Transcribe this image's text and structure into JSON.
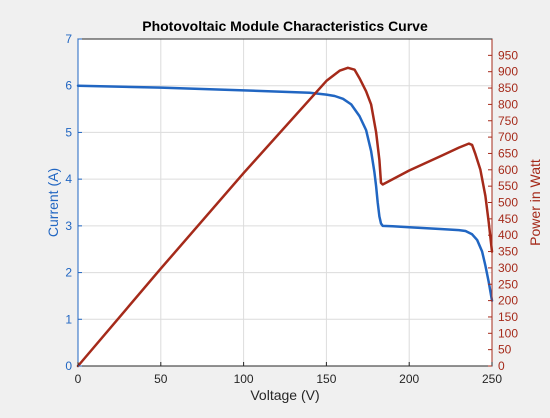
{
  "chart_data": {
    "type": "line",
    "title": "Photovoltaic Module Characteristics Curve",
    "xlabel": "Voltage (V)",
    "ylabel_left": "Current  (A)",
    "ylabel_right": "Power in Watt",
    "xlim": [
      0,
      250
    ],
    "ylim_left": [
      0,
      7
    ],
    "ylim_right": [
      0,
      1000
    ],
    "x_ticks": [
      0,
      50,
      100,
      150,
      200,
      250
    ],
    "y_left_ticks": [
      0,
      1,
      2,
      3,
      4,
      5,
      6,
      7
    ],
    "y_right_ticks": [
      0,
      50,
      100,
      150,
      200,
      250,
      300,
      350,
      400,
      450,
      500,
      550,
      600,
      650,
      700,
      750,
      800,
      850,
      900,
      950
    ],
    "grid": true,
    "colors": {
      "current": "#2166c2",
      "power": "#a52a1a",
      "left_axis": "#2166c2",
      "right_axis": "#a52a1a"
    },
    "series": [
      {
        "axis": "left",
        "x": [
          0,
          50,
          100,
          140,
          150,
          155,
          160,
          165,
          170,
          174,
          177,
          179,
          180,
          181,
          182,
          183,
          184,
          190,
          200,
          220,
          230,
          234,
          238,
          241,
          244,
          246,
          248,
          250
        ],
        "values": [
          6.0,
          5.96,
          5.9,
          5.85,
          5.81,
          5.78,
          5.72,
          5.6,
          5.35,
          5.05,
          4.6,
          4.15,
          3.85,
          3.5,
          3.2,
          3.05,
          3.0,
          2.99,
          2.97,
          2.93,
          2.91,
          2.89,
          2.82,
          2.7,
          2.45,
          2.15,
          1.8,
          1.4
        ]
      },
      {
        "axis": "right",
        "x": [
          0,
          50,
          100,
          150,
          158,
          163,
          167,
          170,
          174,
          177,
          180,
          182,
          183,
          184,
          200,
          220,
          230,
          236,
          238,
          240,
          243,
          246,
          248,
          250
        ],
        "values": [
          0,
          298,
          590,
          872,
          903,
          912,
          906,
          880,
          840,
          800,
          715,
          630,
          560,
          555,
          598,
          644,
          668,
          680,
          676,
          648,
          600,
          520,
          440,
          350
        ]
      }
    ]
  }
}
